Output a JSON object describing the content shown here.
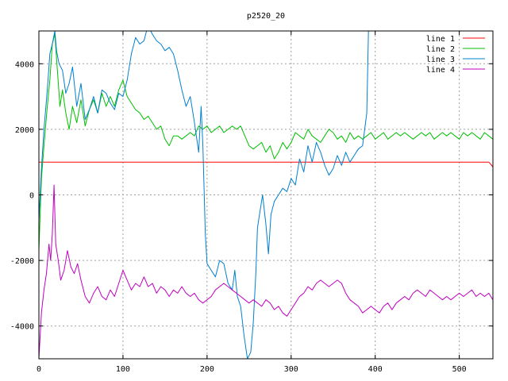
{
  "chart_data": {
    "type": "line",
    "title": "p2520_20",
    "xlabel": "",
    "ylabel": "",
    "xlim": [
      0,
      540
    ],
    "ylim": [
      -5000,
      5000
    ],
    "x_ticks": [
      0,
      100,
      200,
      300,
      400,
      500
    ],
    "y_ticks": [
      -4000,
      -2000,
      0,
      2000,
      4000
    ],
    "grid": true,
    "legend_position": "top-right",
    "series": [
      {
        "name": "line 1",
        "color": "#ff0000",
        "points": [
          [
            0,
            1000
          ],
          [
            535,
            1000
          ],
          [
            537,
            950
          ],
          [
            540,
            850
          ]
        ]
      },
      {
        "name": "line 2",
        "color": "#00c000",
        "points": [
          [
            0,
            -1700
          ],
          [
            3,
            500
          ],
          [
            6,
            1500
          ],
          [
            10,
            2700
          ],
          [
            13,
            3500
          ],
          [
            16,
            4600
          ],
          [
            19,
            4900
          ],
          [
            22,
            3800
          ],
          [
            25,
            2700
          ],
          [
            28,
            3200
          ],
          [
            32,
            2500
          ],
          [
            36,
            2000
          ],
          [
            40,
            2700
          ],
          [
            45,
            2200
          ],
          [
            50,
            2900
          ],
          [
            55,
            2100
          ],
          [
            60,
            2600
          ],
          [
            65,
            2900
          ],
          [
            70,
            2500
          ],
          [
            75,
            3100
          ],
          [
            80,
            2700
          ],
          [
            85,
            3000
          ],
          [
            90,
            2700
          ],
          [
            95,
            3200
          ],
          [
            100,
            3500
          ],
          [
            105,
            3000
          ],
          [
            110,
            2800
          ],
          [
            115,
            2600
          ],
          [
            120,
            2500
          ],
          [
            125,
            2300
          ],
          [
            130,
            2400
          ],
          [
            135,
            2200
          ],
          [
            140,
            2000
          ],
          [
            145,
            2100
          ],
          [
            150,
            1700
          ],
          [
            155,
            1500
          ],
          [
            160,
            1800
          ],
          [
            165,
            1800
          ],
          [
            170,
            1700
          ],
          [
            175,
            1800
          ],
          [
            180,
            1900
          ],
          [
            185,
            1800
          ],
          [
            190,
            2100
          ],
          [
            195,
            2000
          ],
          [
            200,
            2100
          ],
          [
            205,
            1900
          ],
          [
            210,
            2000
          ],
          [
            215,
            2100
          ],
          [
            220,
            1900
          ],
          [
            225,
            2000
          ],
          [
            230,
            2100
          ],
          [
            235,
            2000
          ],
          [
            240,
            2100
          ],
          [
            245,
            1800
          ],
          [
            250,
            1500
          ],
          [
            255,
            1400
          ],
          [
            260,
            1500
          ],
          [
            265,
            1600
          ],
          [
            270,
            1300
          ],
          [
            275,
            1500
          ],
          [
            280,
            1100
          ],
          [
            285,
            1300
          ],
          [
            290,
            1600
          ],
          [
            295,
            1400
          ],
          [
            300,
            1600
          ],
          [
            305,
            1900
          ],
          [
            310,
            1800
          ],
          [
            315,
            1700
          ],
          [
            320,
            2000
          ],
          [
            325,
            1800
          ],
          [
            330,
            1700
          ],
          [
            335,
            1600
          ],
          [
            340,
            1800
          ],
          [
            345,
            2000
          ],
          [
            350,
            1900
          ],
          [
            355,
            1700
          ],
          [
            360,
            1800
          ],
          [
            365,
            1600
          ],
          [
            370,
            1900
          ],
          [
            375,
            1700
          ],
          [
            380,
            1800
          ],
          [
            385,
            1700
          ],
          [
            390,
            1800
          ],
          [
            395,
            1900
          ],
          [
            400,
            1700
          ],
          [
            405,
            1800
          ],
          [
            410,
            1900
          ],
          [
            415,
            1700
          ],
          [
            420,
            1800
          ],
          [
            425,
            1900
          ],
          [
            430,
            1800
          ],
          [
            435,
            1900
          ],
          [
            440,
            1800
          ],
          [
            445,
            1700
          ],
          [
            450,
            1800
          ],
          [
            455,
            1900
          ],
          [
            460,
            1800
          ],
          [
            465,
            1900
          ],
          [
            470,
            1700
          ],
          [
            475,
            1800
          ],
          [
            480,
            1900
          ],
          [
            485,
            1800
          ],
          [
            490,
            1900
          ],
          [
            495,
            1800
          ],
          [
            500,
            1700
          ],
          [
            505,
            1900
          ],
          [
            510,
            1800
          ],
          [
            515,
            1900
          ],
          [
            520,
            1800
          ],
          [
            525,
            1700
          ],
          [
            530,
            1900
          ],
          [
            535,
            1800
          ],
          [
            540,
            1700
          ]
        ]
      },
      {
        "name": "line 3",
        "color": "#0080d0",
        "points": [
          [
            0,
            -800
          ],
          [
            3,
            800
          ],
          [
            6,
            2000
          ],
          [
            10,
            3200
          ],
          [
            13,
            4300
          ],
          [
            16,
            4600
          ],
          [
            19,
            5000
          ],
          [
            21,
            4400
          ],
          [
            24,
            4000
          ],
          [
            28,
            3800
          ],
          [
            32,
            3100
          ],
          [
            36,
            3400
          ],
          [
            40,
            3900
          ],
          [
            45,
            2700
          ],
          [
            50,
            3400
          ],
          [
            55,
            2300
          ],
          [
            60,
            2600
          ],
          [
            65,
            3000
          ],
          [
            70,
            2500
          ],
          [
            75,
            3200
          ],
          [
            80,
            3100
          ],
          [
            85,
            2800
          ],
          [
            90,
            2600
          ],
          [
            95,
            3100
          ],
          [
            100,
            3000
          ],
          [
            105,
            3500
          ],
          [
            110,
            4300
          ],
          [
            115,
            4800
          ],
          [
            120,
            4600
          ],
          [
            125,
            4700
          ],
          [
            128,
            5000
          ],
          [
            133,
            5000
          ],
          [
            135,
            4900
          ],
          [
            140,
            4700
          ],
          [
            145,
            4600
          ],
          [
            150,
            4400
          ],
          [
            155,
            4500
          ],
          [
            160,
            4300
          ],
          [
            165,
            3800
          ],
          [
            170,
            3200
          ],
          [
            175,
            2700
          ],
          [
            180,
            3000
          ],
          [
            185,
            2200
          ],
          [
            190,
            1300
          ],
          [
            193,
            2700
          ],
          [
            195,
            1500
          ],
          [
            198,
            -1200
          ],
          [
            200,
            -2100
          ],
          [
            205,
            -2300
          ],
          [
            210,
            -2500
          ],
          [
            215,
            -2000
          ],
          [
            220,
            -2100
          ],
          [
            225,
            -2700
          ],
          [
            230,
            -2900
          ],
          [
            233,
            -2300
          ],
          [
            236,
            -3100
          ],
          [
            240,
            -3400
          ],
          [
            244,
            -4300
          ],
          [
            248,
            -5000
          ],
          [
            252,
            -4800
          ],
          [
            255,
            -3900
          ],
          [
            258,
            -2400
          ],
          [
            260,
            -1000
          ],
          [
            263,
            -500
          ],
          [
            266,
            0
          ],
          [
            270,
            -900
          ],
          [
            273,
            -1800
          ],
          [
            276,
            -600
          ],
          [
            280,
            -200
          ],
          [
            285,
            0
          ],
          [
            290,
            200
          ],
          [
            295,
            100
          ],
          [
            300,
            500
          ],
          [
            305,
            300
          ],
          [
            310,
            1100
          ],
          [
            315,
            700
          ],
          [
            320,
            1500
          ],
          [
            325,
            1000
          ],
          [
            330,
            1600
          ],
          [
            335,
            1300
          ],
          [
            340,
            900
          ],
          [
            345,
            600
          ],
          [
            350,
            800
          ],
          [
            355,
            1200
          ],
          [
            360,
            900
          ],
          [
            365,
            1300
          ],
          [
            370,
            1000
          ],
          [
            375,
            1200
          ],
          [
            380,
            1400
          ],
          [
            385,
            1500
          ],
          [
            390,
            2500
          ],
          [
            392,
            5000
          ]
        ]
      },
      {
        "name": "line 4",
        "color": "#c000c0",
        "points": [
          [
            0,
            -5000
          ],
          [
            3,
            -3600
          ],
          [
            6,
            -2900
          ],
          [
            9,
            -2400
          ],
          [
            12,
            -1500
          ],
          [
            14,
            -2000
          ],
          [
            16,
            -1200
          ],
          [
            18,
            300
          ],
          [
            20,
            -1500
          ],
          [
            23,
            -2000
          ],
          [
            26,
            -2600
          ],
          [
            30,
            -2300
          ],
          [
            34,
            -1700
          ],
          [
            38,
            -2200
          ],
          [
            42,
            -2400
          ],
          [
            46,
            -2100
          ],
          [
            50,
            -2600
          ],
          [
            55,
            -3100
          ],
          [
            60,
            -3300
          ],
          [
            65,
            -3000
          ],
          [
            70,
            -2800
          ],
          [
            75,
            -3100
          ],
          [
            80,
            -3200
          ],
          [
            85,
            -2900
          ],
          [
            90,
            -3100
          ],
          [
            95,
            -2700
          ],
          [
            100,
            -2300
          ],
          [
            105,
            -2600
          ],
          [
            110,
            -2900
          ],
          [
            115,
            -2700
          ],
          [
            120,
            -2800
          ],
          [
            125,
            -2500
          ],
          [
            130,
            -2800
          ],
          [
            135,
            -2700
          ],
          [
            140,
            -3000
          ],
          [
            145,
            -2800
          ],
          [
            150,
            -2900
          ],
          [
            155,
            -3100
          ],
          [
            160,
            -2900
          ],
          [
            165,
            -3000
          ],
          [
            170,
            -2800
          ],
          [
            175,
            -3000
          ],
          [
            180,
            -3100
          ],
          [
            185,
            -3000
          ],
          [
            190,
            -3200
          ],
          [
            195,
            -3300
          ],
          [
            200,
            -3200
          ],
          [
            205,
            -3100
          ],
          [
            210,
            -2900
          ],
          [
            215,
            -2800
          ],
          [
            220,
            -2700
          ],
          [
            225,
            -2800
          ],
          [
            230,
            -2900
          ],
          [
            235,
            -3000
          ],
          [
            240,
            -3100
          ],
          [
            245,
            -3200
          ],
          [
            250,
            -3300
          ],
          [
            255,
            -3200
          ],
          [
            260,
            -3300
          ],
          [
            265,
            -3400
          ],
          [
            270,
            -3200
          ],
          [
            275,
            -3300
          ],
          [
            280,
            -3500
          ],
          [
            285,
            -3400
          ],
          [
            290,
            -3600
          ],
          [
            295,
            -3700
          ],
          [
            300,
            -3500
          ],
          [
            305,
            -3300
          ],
          [
            310,
            -3100
          ],
          [
            315,
            -3000
          ],
          [
            320,
            -2800
          ],
          [
            325,
            -2900
          ],
          [
            330,
            -2700
          ],
          [
            335,
            -2600
          ],
          [
            340,
            -2700
          ],
          [
            345,
            -2800
          ],
          [
            350,
            -2700
          ],
          [
            355,
            -2600
          ],
          [
            360,
            -2700
          ],
          [
            365,
            -3000
          ],
          [
            370,
            -3200
          ],
          [
            375,
            -3300
          ],
          [
            380,
            -3400
          ],
          [
            385,
            -3600
          ],
          [
            390,
            -3500
          ],
          [
            395,
            -3400
          ],
          [
            400,
            -3500
          ],
          [
            405,
            -3600
          ],
          [
            410,
            -3400
          ],
          [
            415,
            -3300
          ],
          [
            420,
            -3500
          ],
          [
            425,
            -3300
          ],
          [
            430,
            -3200
          ],
          [
            435,
            -3100
          ],
          [
            440,
            -3200
          ],
          [
            445,
            -3000
          ],
          [
            450,
            -2900
          ],
          [
            455,
            -3000
          ],
          [
            460,
            -3100
          ],
          [
            465,
            -2900
          ],
          [
            470,
            -3000
          ],
          [
            475,
            -3100
          ],
          [
            480,
            -3200
          ],
          [
            485,
            -3100
          ],
          [
            490,
            -3200
          ],
          [
            495,
            -3100
          ],
          [
            500,
            -3000
          ],
          [
            505,
            -3100
          ],
          [
            510,
            -3000
          ],
          [
            515,
            -2900
          ],
          [
            520,
            -3100
          ],
          [
            525,
            -3000
          ],
          [
            530,
            -3100
          ],
          [
            535,
            -3000
          ],
          [
            540,
            -3200
          ]
        ]
      }
    ]
  }
}
